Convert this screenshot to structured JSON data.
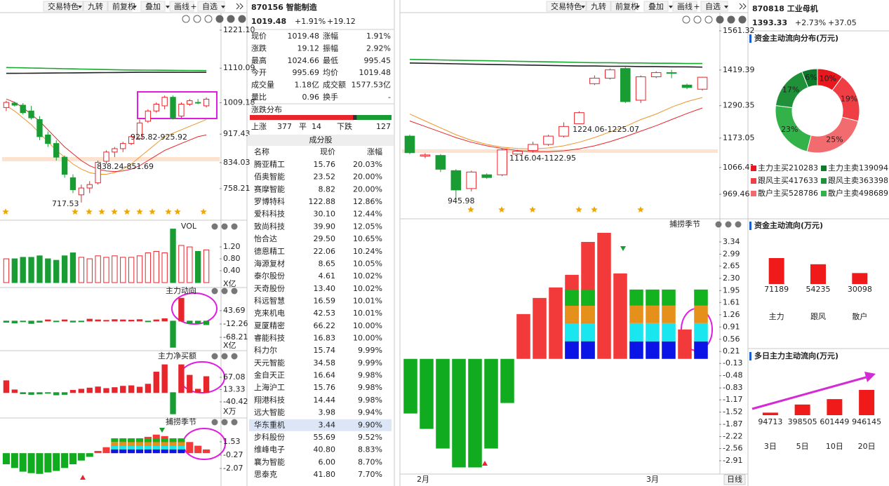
{
  "toolbar": {
    "items": [
      "交易特色",
      "九转",
      "前复权",
      "叠加",
      "画线",
      "自选"
    ]
  },
  "period": "日线",
  "left_quote": {
    "code_name": "870156 智能制造",
    "price": "1019.48",
    "pct": "+1.91%",
    "chg": "+19.12",
    "stats": [
      [
        "现价",
        "1019.48",
        "涨幅",
        "1.91%"
      ],
      [
        "涨跌",
        "19.12",
        "振幅",
        "2.92%"
      ],
      [
        "最高",
        "1024.66",
        "最低",
        "995.45"
      ],
      [
        "今开",
        "995.69",
        "均价",
        "1019.48"
      ],
      [
        "成交量",
        "1.18亿",
        "成交额",
        "1577.53亿"
      ],
      [
        "量比",
        "0.96",
        "换手",
        "-"
      ]
    ],
    "dist": {
      "title": "涨跌分布",
      "labels": [
        "上涨",
        "平",
        "下跌"
      ],
      "counts": [
        377,
        14,
        127
      ]
    },
    "components": {
      "title": "成分股",
      "headers": [
        "名称",
        "现价",
        "涨幅"
      ],
      "rows": [
        [
          "腾亚精工",
          "15.76",
          "20.03%"
        ],
        [
          "佰奥智能",
          "23.52",
          "20.00%"
        ],
        [
          "赛摩智能",
          "8.82",
          "20.00%"
        ],
        [
          "罗博特科",
          "122.88",
          "12.86%"
        ],
        [
          "爱科科技",
          "30.10",
          "12.44%"
        ],
        [
          "致尚科技",
          "39.90",
          "12.05%"
        ],
        [
          "怡合达",
          "29.50",
          "10.65%"
        ],
        [
          "德恩精工",
          "22.06",
          "10.24%"
        ],
        [
          "海源复材",
          "8.65",
          "10.05%"
        ],
        [
          "泰尔股份",
          "4.61",
          "10.02%"
        ],
        [
          "天奇股份",
          "13.40",
          "10.02%"
        ],
        [
          "科远智慧",
          "16.59",
          "10.01%"
        ],
        [
          "克来机电",
          "42.53",
          "10.01%"
        ],
        [
          "夏厦精密",
          "66.22",
          "10.00%"
        ],
        [
          "睿能科技",
          "16.83",
          "10.00%"
        ],
        [
          "科力尔",
          "15.74",
          "9.99%"
        ],
        [
          "天元智能",
          "34.58",
          "9.99%"
        ],
        [
          "金自天正",
          "16.64",
          "9.98%"
        ],
        [
          "上海沪工",
          "15.76",
          "9.98%"
        ],
        [
          "翔港科技",
          "14.44",
          "9.98%"
        ],
        [
          "远大智能",
          "3.98",
          "9.94%"
        ],
        [
          "华东重机",
          "3.44",
          "9.90%"
        ],
        [
          "步科股份",
          "55.69",
          "9.52%"
        ],
        [
          "维峰电子",
          "40.80",
          "8.83%"
        ],
        [
          "襄为智能",
          "6.00",
          "8.70%"
        ],
        [
          "思泰克",
          "41.80",
          "7.70%"
        ]
      ]
    }
  },
  "right_quote": {
    "code_name": "870818 工业母机",
    "price": "1393.33",
    "pct": "+2.73%",
    "chg": "+37.05"
  },
  "chart_data": [
    {
      "type": "candlestick",
      "ylim": [
        674.1,
        1237.5
      ],
      "yticks": [
        {
          "value": 1221.1,
          "label": "1221.10"
        },
        1110.09,
        1009.18,
        917.43,
        834.03,
        758.21
      ],
      "open": [
        995,
        1008,
        1002,
        985,
        960,
        915,
        890,
        850,
        790,
        740,
        760,
        775,
        838,
        865,
        875,
        890,
        905,
        955,
        985,
        1000,
        1025,
        970,
        1005,
        1010,
        1000
      ],
      "high": [
        1015,
        1012,
        1008,
        1000,
        970,
        925,
        900,
        855,
        800,
        770,
        780,
        840,
        870,
        880,
        895,
        915,
        960,
        990,
        1010,
        1030,
        1030,
        1010,
        1020,
        1020,
        1024.66
      ],
      "low": [
        985,
        998,
        975,
        960,
        900,
        880,
        840,
        790,
        745,
        717.53,
        745,
        770,
        830,
        850,
        865,
        885,
        900,
        950,
        980,
        990,
        960,
        965,
        1000,
        1005,
        995.45
      ],
      "close": [
        1010,
        1002,
        980,
        965,
        910,
        890,
        850,
        800,
        755,
        760,
        770,
        835,
        865,
        875,
        890,
        910,
        950,
        985,
        1005,
        1025,
        965,
        1005,
        1015,
        1008,
        1019.48
      ],
      "ma": [
        {
          "color": "#17a82e",
          "values": [
            1112,
            1111.5,
            1111,
            1110.5,
            1110,
            1109.5,
            1109,
            1108.5,
            1108,
            1107.5,
            1107,
            1106.5,
            1106,
            1105.5,
            1105,
            1104.8,
            1104.6,
            1104.4,
            1104.2,
            1104,
            1103.8,
            1103.6,
            1103.4,
            1103.2,
            1103
          ]
        },
        {
          "color": "#222222",
          "values": [
            1095,
            1095,
            1095.2,
            1095.4,
            1095.6,
            1095.8,
            1096,
            1096.2,
            1096.4,
            1096.6,
            1096.8,
            1097,
            1097.2,
            1097.4,
            1097.6,
            1097.8,
            1098,
            1098,
            1098,
            1098,
            1098,
            1098,
            1098,
            1098,
            1098
          ]
        },
        {
          "color": "#f0952a",
          "values": [
            1000,
            985,
            965,
            945,
            920,
            895,
            870,
            850,
            830,
            815,
            805,
            800,
            800,
            805,
            815,
            830,
            850,
            870,
            890,
            910,
            920,
            930,
            940,
            950,
            960
          ]
        },
        {
          "color": "#e8252b",
          "values": [
            1020,
            1010,
            995,
            975,
            955,
            930,
            905,
            880,
            860,
            840,
            825,
            815,
            810,
            808,
            810,
            815,
            825,
            840,
            855,
            870,
            880,
            890,
            900,
            910,
            915
          ]
        }
      ],
      "annotations": [
        "925.82-925.92",
        "838.24-851.69",
        "717.53"
      ]
    },
    {
      "type": "bar",
      "title": "VOL",
      "unit": "X亿",
      "ylim": [
        0,
        1.72
      ],
      "yticks": [
        {
          "value": 1.2,
          "label": "1.20"
        },
        {
          "value": 0.8,
          "label": "0.80"
        },
        {
          "value": 0.4,
          "label": "0.40"
        }
      ],
      "values": [
        0.8,
        0.8,
        0.85,
        0.85,
        0.9,
        0.8,
        0.75,
        0.9,
        1.0,
        0.85,
        0.8,
        0.9,
        0.85,
        0.9,
        0.85,
        0.85,
        0.9,
        1.0,
        1.05,
        1.0,
        1.8,
        1.25,
        1.2,
        1.05,
        1.1
      ]
    },
    {
      "type": "bar",
      "title": "主力动向",
      "unit": "X亿",
      "ylim": [
        -115.3,
        111.4
      ],
      "yticks": [
        43.69,
        -12.26,
        -68.21
      ],
      "values": [
        -5,
        -8,
        -3,
        -10,
        -5,
        5,
        -3,
        5,
        -4,
        -3,
        8,
        5,
        3,
        6,
        5,
        4,
        6,
        -3,
        5,
        10,
        -110,
        96,
        -10,
        -8,
        -15
      ]
    },
    {
      "type": "bar",
      "title": "主力净买额",
      "unit": "X万",
      "ylim": [
        -98.8,
        153.1
      ],
      "yticks": [
        67.08,
        13.33,
        -40.42
      ],
      "values": [
        52,
        12,
        -5,
        -8,
        -6,
        -3,
        -10,
        -8,
        10,
        15,
        20,
        25,
        18,
        22,
        28,
        30,
        24,
        37,
        90,
        122,
        -93,
        122,
        76,
        15,
        70
      ]
    },
    {
      "type": "season",
      "title": "捕捞季节",
      "ylim": [
        -3.96,
        3.61
      ],
      "yticks": [
        1.53,
        -0.27,
        -2.07
      ],
      "values": [
        -1.5,
        -2,
        -2.5,
        -2.7,
        -2.8,
        -2.6,
        -2.4,
        -2,
        -1.5,
        -1,
        -0.5,
        0.3,
        0.8,
        1.2,
        1.5,
        1.8,
        2.0,
        2.2,
        2.5,
        2.3,
        2.0,
        1.8,
        1.5,
        1.0,
        0.5
      ],
      "series": [
        {
          "color": "#0a14e6",
          "values": [
            null,
            null,
            null,
            null,
            null,
            null,
            null,
            null,
            null,
            null,
            null,
            null,
            null,
            0.5,
            0.5,
            0.5,
            0.5,
            0.5,
            0.5,
            0.5,
            0.5,
            0.5,
            null,
            null,
            null
          ]
        },
        {
          "color": "#19e6ee",
          "values": [
            null,
            null,
            null,
            null,
            null,
            null,
            null,
            null,
            null,
            null,
            null,
            null,
            null,
            0.5,
            0.5,
            0.5,
            0.5,
            0.5,
            0.5,
            0.5,
            0.5,
            0.5,
            null,
            null,
            null
          ]
        },
        {
          "color": "#e6901c",
          "values": [
            null,
            null,
            null,
            null,
            null,
            null,
            null,
            null,
            null,
            null,
            null,
            null,
            null,
            0.5,
            0.5,
            0.5,
            0.5,
            0.5,
            0.5,
            0.5,
            0.5,
            0.5,
            null,
            null,
            null
          ]
        },
        {
          "color": "#13b21f",
          "values": [
            null,
            null,
            null,
            null,
            null,
            null,
            null,
            null,
            null,
            null,
            null,
            null,
            null,
            0.5,
            0.5,
            0.5,
            0.5,
            0.5,
            0.5,
            0.5,
            0.5,
            0.5,
            null,
            null,
            null
          ]
        }
      ]
    },
    {
      "type": "candlestick",
      "ylim": [
        898.3,
        1584.2
      ],
      "yticks": [
        1561.32,
        1419.39,
        1290.35,
        1173.05,
        1066.41,
        969.46
      ],
      "categories": [
        "2月",
        "3月"
      ],
      "open": [
        1180,
        1108,
        1110,
        1055,
        990,
        1040,
        1040,
        1115,
        1128,
        1150,
        1180,
        1225,
        1370,
        1390,
        1425,
        1310,
        1395,
        1410,
        1365,
        1350
      ],
      "high": [
        1185,
        1118,
        1115,
        1060,
        1055,
        1045,
        1135,
        1130,
        1160,
        1185,
        1230,
        1270,
        1400,
        1425,
        1430,
        1400,
        1415,
        1420,
        1370,
        1395
      ],
      "low": [
        1115,
        1100,
        1050,
        945.98,
        980,
        1025,
        1035,
        1112,
        1120,
        1145,
        1175,
        1224,
        1365,
        1385,
        1300,
        1300,
        1390,
        1390,
        1350,
        1345
      ],
      "close": [
        1120,
        1112,
        1060,
        985,
        1050,
        1030,
        1130,
        1125,
        1150,
        1180,
        1215,
        1265,
        1390,
        1420,
        1305,
        1395,
        1410,
        1408,
        1356,
        1393.33
      ],
      "ma": [
        {
          "color": "#17a82e",
          "values": [
            1458,
            1457,
            1456,
            1455,
            1454,
            1453,
            1452,
            1451,
            1450,
            1449,
            1448,
            1447,
            1446,
            1446,
            1445,
            1445,
            1444,
            1444,
            1443,
            1443
          ]
        },
        {
          "color": "#222222",
          "values": [
            1445,
            1444,
            1443,
            1442,
            1441,
            1440,
            1439,
            1438,
            1437,
            1436,
            1435,
            1434,
            1434,
            1433,
            1433,
            1432,
            1432,
            1431,
            1431,
            1430
          ]
        },
        {
          "color": "#f0952a",
          "values": [
            1260,
            1235,
            1210,
            1185,
            1165,
            1150,
            1140,
            1135,
            1134,
            1137,
            1145,
            1158,
            1175,
            1195,
            1215,
            1240,
            1260,
            1285,
            1305,
            1320
          ]
        },
        {
          "color": "#e8252b",
          "values": [
            1235,
            1215,
            1195,
            1175,
            1158,
            1145,
            1135,
            1128,
            1124,
            1124,
            1127,
            1134,
            1145,
            1160,
            1178,
            1198,
            1218,
            1240,
            1262,
            1282
          ]
        }
      ],
      "annotations": [
        "1224.06-1225.07",
        "1116.04-1122.95",
        "945.98"
      ]
    },
    {
      "type": "season",
      "title": "捕捞季节",
      "ylim": [
        -3.21,
        3.74
      ],
      "yticks": [
        3.34,
        2.99,
        2.65,
        {
          "value": 2.3,
          "label": "2.30"
        },
        1.95,
        1.61,
        1.26,
        0.91,
        0.56,
        0.21,
        -0.13,
        -0.48,
        -0.83,
        -1.17,
        -1.52,
        -1.87,
        -2.22,
        -2.56,
        -2.91
      ],
      "values": [
        -1.56,
        -2.0,
        -2.56,
        -3.1,
        -3.1,
        -2.56,
        -1.26,
        1.28,
        1.74,
        2.04,
        2.4,
        3.34,
        3.6,
        2.44,
        null,
        null,
        null,
        0.84,
        null
      ],
      "series": [
        {
          "color": "#0a14e6",
          "values": [
            null,
            null,
            null,
            null,
            null,
            null,
            null,
            null,
            null,
            null,
            0.5,
            0.5,
            null,
            null,
            0.5,
            0.5,
            0.5,
            null,
            0.5
          ]
        },
        {
          "color": "#19e6ee",
          "values": [
            null,
            null,
            null,
            null,
            null,
            null,
            null,
            null,
            null,
            null,
            0.52,
            0.52,
            null,
            null,
            0.52,
            0.52,
            0.52,
            null,
            0.52
          ]
        },
        {
          "color": "#e6901c",
          "values": [
            null,
            null,
            null,
            null,
            null,
            null,
            null,
            null,
            null,
            null,
            0.5,
            0.5,
            null,
            null,
            0.5,
            0.5,
            0.5,
            null,
            0.5
          ]
        },
        {
          "color": "#13b21f",
          "values": [
            null,
            null,
            null,
            null,
            null,
            null,
            null,
            null,
            null,
            null,
            0.46,
            0.46,
            null,
            null,
            0.46,
            0.46,
            0.46,
            null,
            0.46
          ]
        }
      ]
    },
    {
      "type": "pie",
      "title": "资金主动流向分布(万元)",
      "values": [
        10,
        19,
        25,
        23,
        17,
        6
      ],
      "value_labels": [
        "10%",
        "19%",
        "25%",
        "23%",
        "17%",
        "6%"
      ],
      "colors": [
        "#e8161d",
        "#ef3f45",
        "#f26b6e",
        "#34b24a",
        "#1f9138",
        "#0d7a2a"
      ],
      "legend": [
        {
          "name": "主力主买",
          "value": 210283,
          "color": "#e8161d"
        },
        {
          "name": "主力主卖",
          "value": 139094,
          "color": "#0d7a2a"
        },
        {
          "name": "跟风主买",
          "value": 417633,
          "color": "#ef3f45"
        },
        {
          "name": "跟风主卖",
          "value": 363398,
          "color": "#1f9138"
        },
        {
          "name": "散户主买",
          "value": 528786,
          "color": "#f26b6e"
        },
        {
          "name": "散户主卖",
          "value": 498689,
          "color": "#34b24a"
        }
      ]
    },
    {
      "type": "bar",
      "title": "资金主动流向(万元)",
      "categories": [
        "主力",
        "跟风",
        "散户"
      ],
      "values": [
        71189,
        54235,
        30098
      ],
      "color": "#f01a1a"
    },
    {
      "type": "bar",
      "title": "多日主力主动流向(万元)",
      "categories": [
        "3日",
        "5日",
        "10日",
        "20日"
      ],
      "values": [
        94713,
        398505,
        601449,
        946145
      ],
      "color": "#f01a1a"
    }
  ]
}
